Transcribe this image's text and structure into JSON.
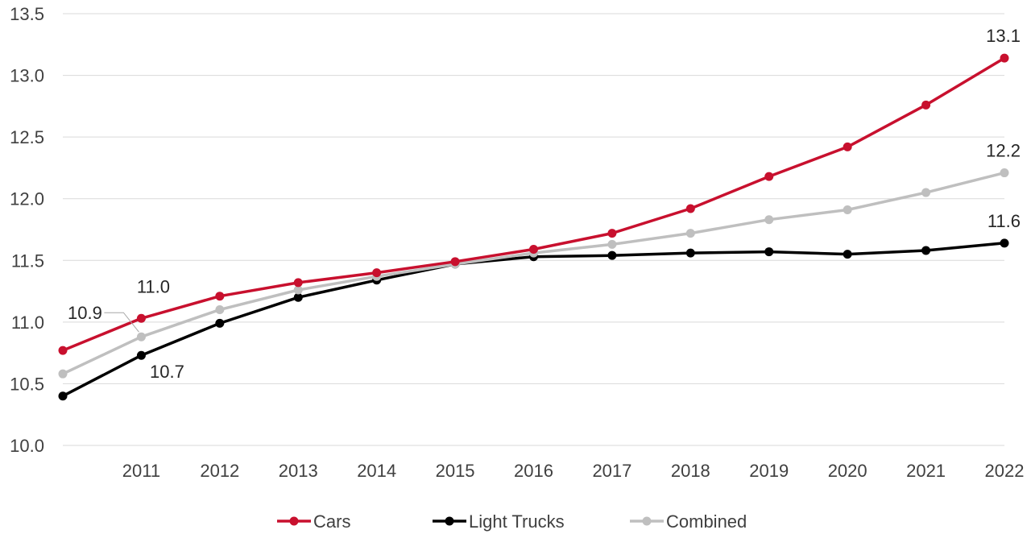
{
  "chart_data": {
    "type": "line",
    "categories": [
      "",
      "2011",
      "2012",
      "2013",
      "2014",
      "2015",
      "2016",
      "2017",
      "2018",
      "2019",
      "2020",
      "2021",
      "2022"
    ],
    "ylim": [
      10.0,
      13.5
    ],
    "yticks": [
      "10.0",
      "10.5",
      "11.0",
      "11.5",
      "12.0",
      "12.5",
      "13.0",
      "13.5"
    ],
    "grid": true,
    "legend_position": "bottom",
    "series": [
      {
        "name": "Cars",
        "color": "#c8102e",
        "values": [
          10.77,
          11.03,
          11.21,
          11.32,
          11.4,
          11.49,
          11.59,
          11.72,
          11.92,
          12.18,
          12.42,
          12.76,
          13.14
        ]
      },
      {
        "name": "Light Trucks",
        "color": "#000000",
        "values": [
          10.4,
          10.73,
          10.99,
          11.2,
          11.34,
          11.47,
          11.53,
          11.54,
          11.56,
          11.57,
          11.55,
          11.58,
          11.64
        ]
      },
      {
        "name": "Combined",
        "color": "#bfbfbf",
        "values": [
          10.58,
          10.88,
          11.1,
          11.26,
          11.37,
          11.47,
          11.56,
          11.63,
          11.72,
          11.83,
          11.91,
          12.05,
          12.21
        ]
      }
    ],
    "data_labels": [
      {
        "series": 0,
        "index": 1,
        "text": "11.0"
      },
      {
        "series": 2,
        "index": 1,
        "text": "10.9"
      },
      {
        "series": 1,
        "index": 1,
        "text": "10.7"
      },
      {
        "series": 0,
        "index": 12,
        "text": "13.1"
      },
      {
        "series": 2,
        "index": 12,
        "text": "12.2"
      },
      {
        "series": 1,
        "index": 12,
        "text": "11.6"
      }
    ]
  }
}
